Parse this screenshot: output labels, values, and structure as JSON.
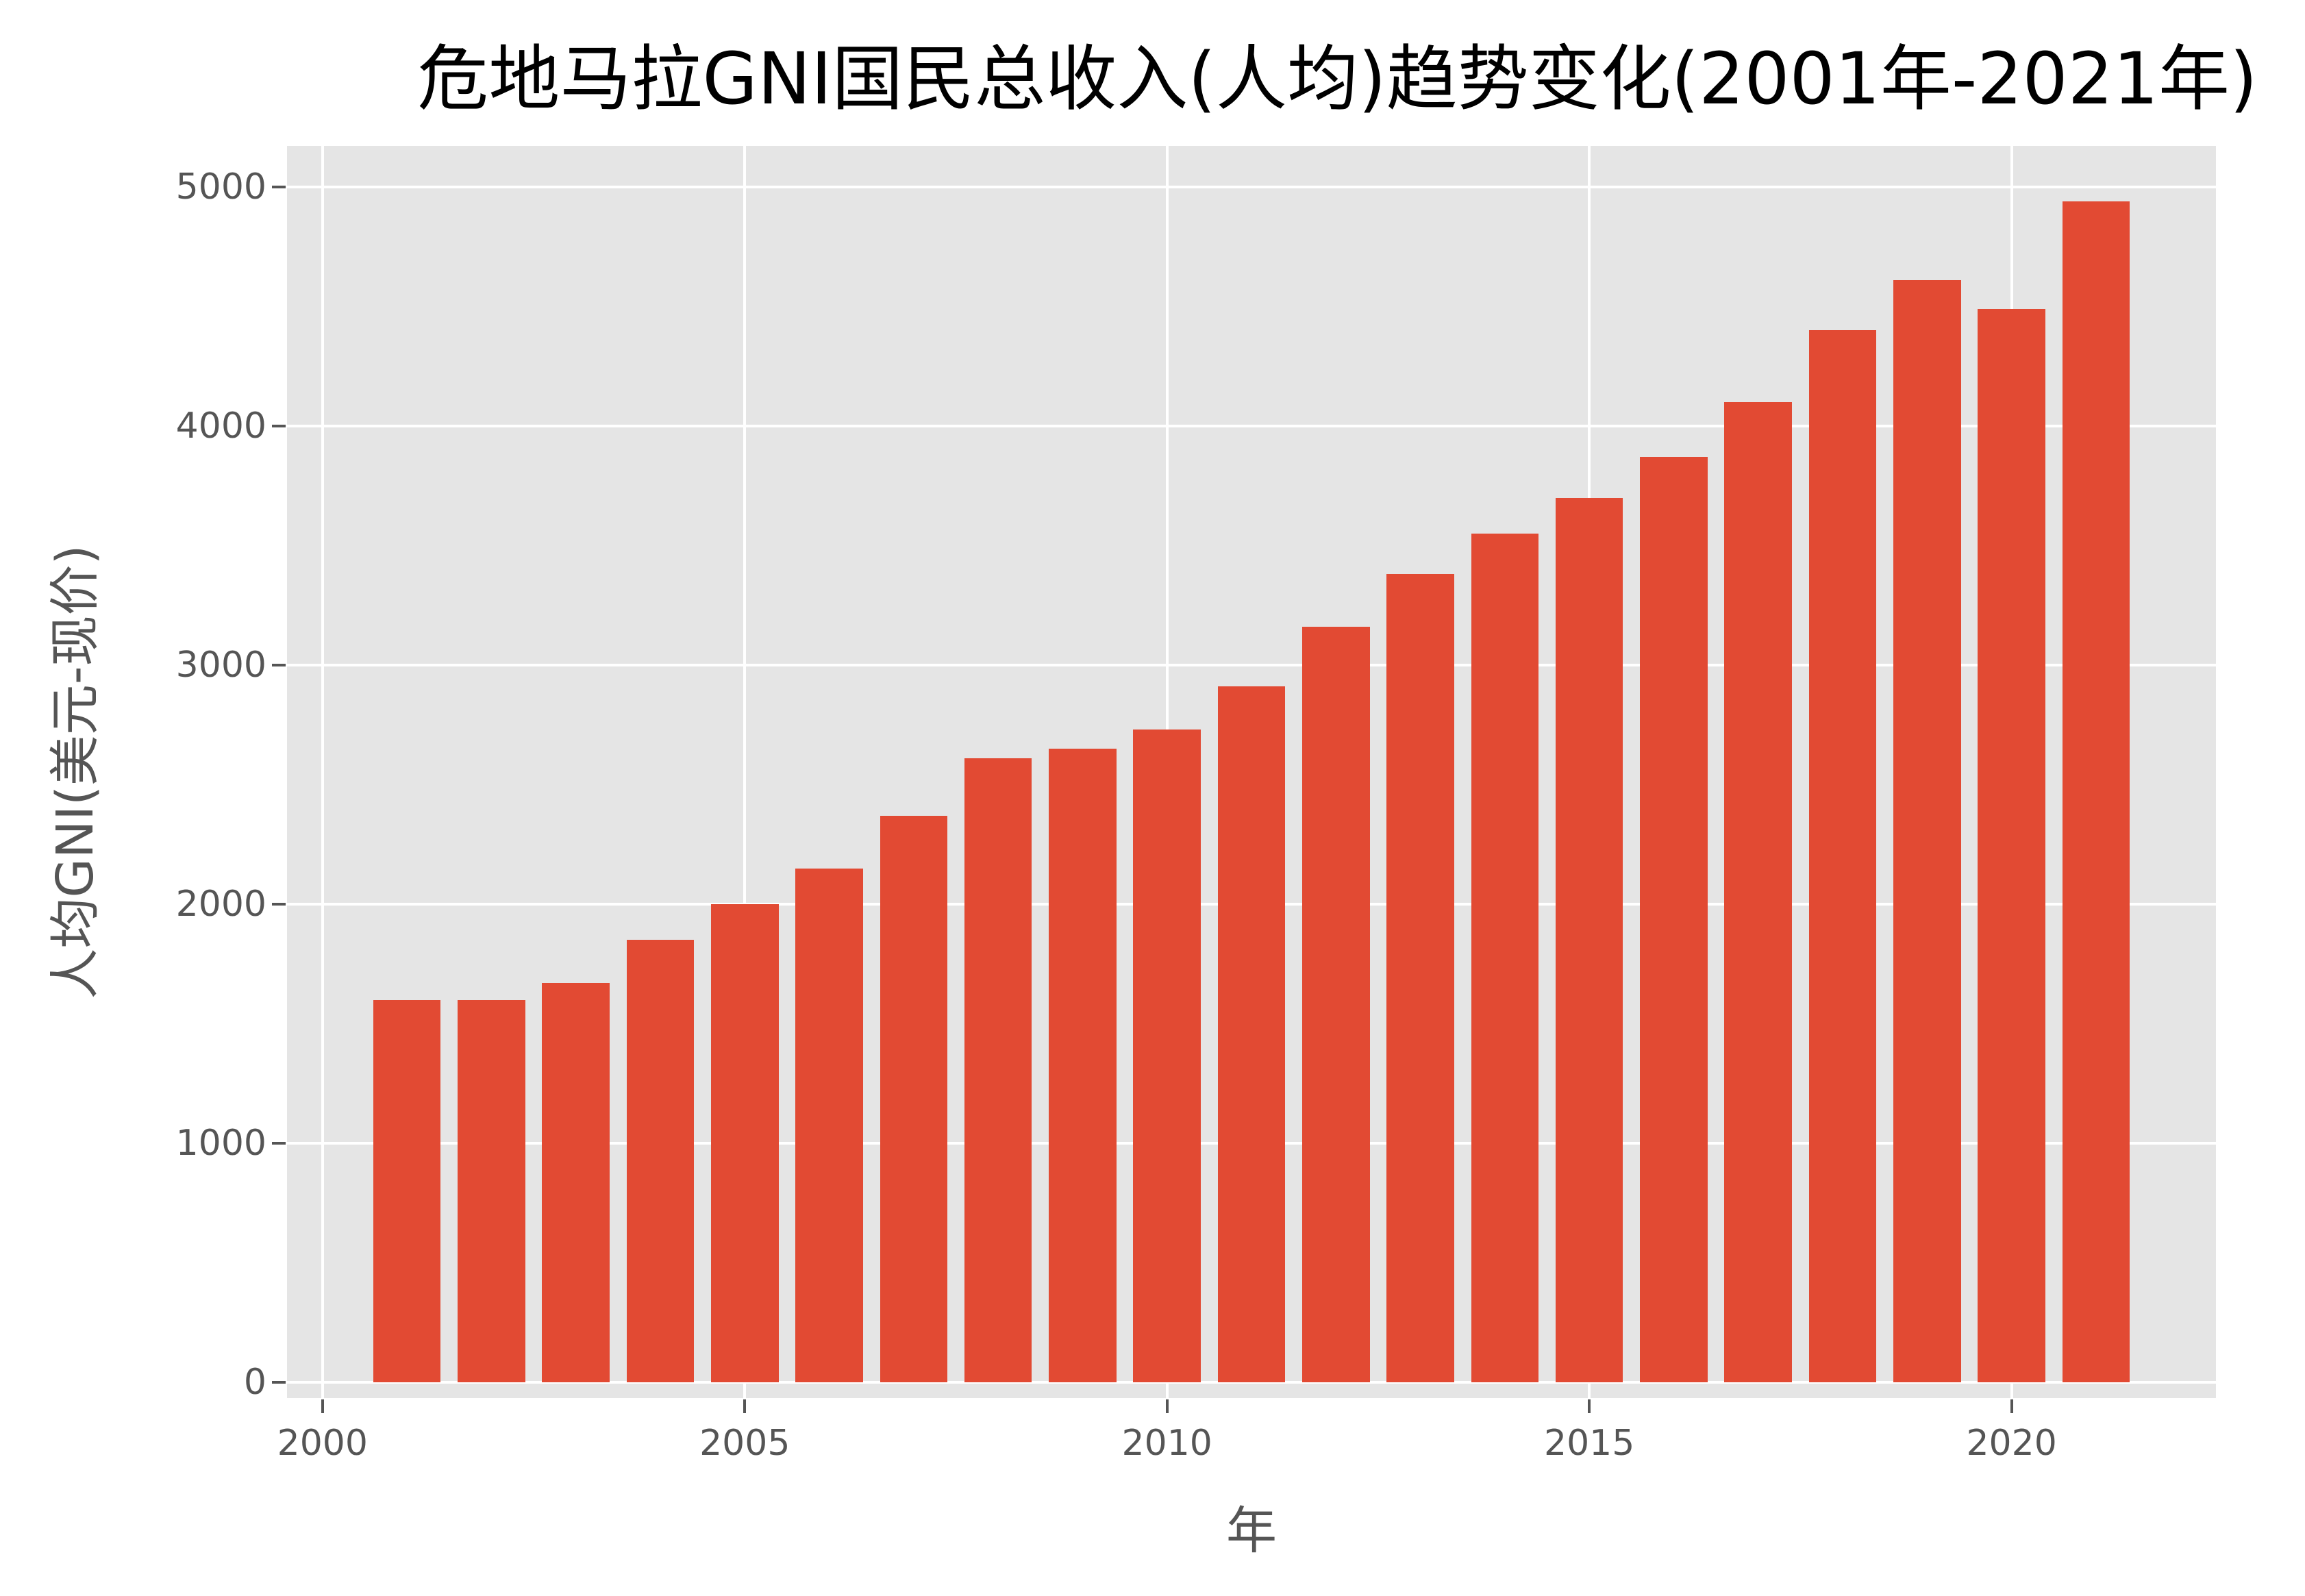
{
  "chart_data": {
    "type": "bar",
    "title": "危地马拉GNI国民总收入(人均)趋势变化(2001年-2021年)",
    "xlabel": "年",
    "ylabel": "人均GNI(美元-现价)",
    "categories": [
      2001,
      2002,
      2003,
      2004,
      2005,
      2006,
      2007,
      2008,
      2009,
      2010,
      2011,
      2012,
      2013,
      2014,
      2015,
      2016,
      2017,
      2018,
      2019,
      2020,
      2021
    ],
    "values": [
      1600,
      1600,
      1670,
      1850,
      2000,
      2150,
      2370,
      2610,
      2650,
      2730,
      2910,
      3160,
      3380,
      3550,
      3700,
      3870,
      4100,
      4400,
      4610,
      4490,
      4940
    ],
    "xlim": [
      1999.58,
      2022.42
    ],
    "ylim": [
      -66,
      5172
    ],
    "xticks": [
      2000,
      2005,
      2010,
      2015,
      2020
    ],
    "yticks": [
      0,
      1000,
      2000,
      3000,
      4000,
      5000
    ],
    "grid": true,
    "legend": null,
    "bar_color": "#e24a33",
    "background_color": "#e5e5e5",
    "bar_width": 0.8
  }
}
